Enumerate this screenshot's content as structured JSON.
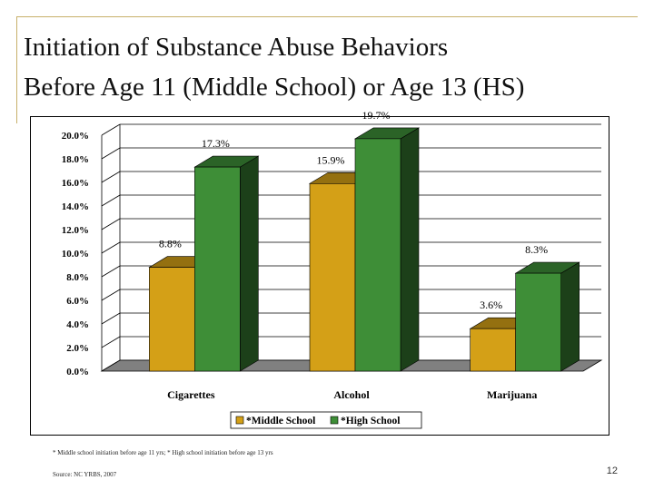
{
  "slide": {
    "title_line1": "Initiation of Substance Abuse Behaviors",
    "title_line2": "Before Age 11 (Middle School) or Age 13 (HS)",
    "footnote": "* Middle school initiation before age 11 yrs; * High school initiation before age 13 yrs",
    "source": "Source: NC YRBS, 2007",
    "page_number": "12"
  },
  "colors": {
    "rule": "#c8b06a",
    "middle_school": "#d4a017",
    "high_school": "#3e8e37"
  },
  "chart_data": {
    "type": "bar",
    "categories": [
      "Cigarettes",
      "Alcohol",
      "Marijuana"
    ],
    "series": [
      {
        "name": "*Middle School",
        "values": [
          8.8,
          15.9,
          3.6
        ],
        "labels": [
          "8.8%",
          "15.9%",
          "3.6%"
        ]
      },
      {
        "name": "*High School",
        "values": [
          17.3,
          19.7,
          8.3
        ],
        "labels": [
          "17.3%",
          "19.7%",
          "8.3%"
        ]
      }
    ],
    "y_ticks": [
      "0.0%",
      "2.0%",
      "4.0%",
      "6.0%",
      "8.0%",
      "10.0%",
      "12.0%",
      "14.0%",
      "16.0%",
      "18.0%",
      "20.0%"
    ],
    "ylim": [
      0,
      20
    ],
    "legend_position": "bottom",
    "title": "",
    "xlabel": "",
    "ylabel": ""
  }
}
